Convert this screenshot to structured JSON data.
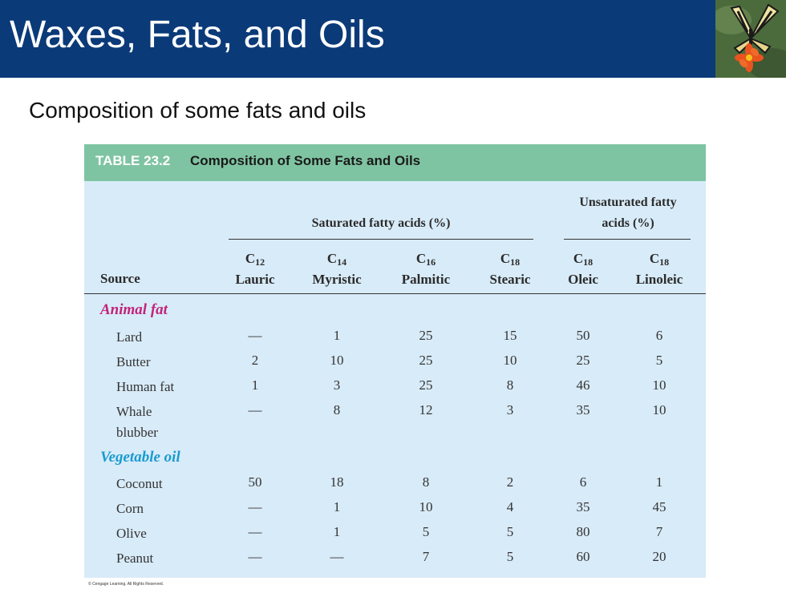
{
  "slide": {
    "title": "Waxes, Fats, and Oils",
    "subtitle": "Composition of some fats and oils",
    "copyright": "© Cengage Learning. All Rights Reserved."
  },
  "table": {
    "number": "TABLE 23.2",
    "caption": "Composition of Some Fats and Oils",
    "group_saturated": "Saturated fatty acids (%)",
    "group_unsaturated_line1": "Unsaturated fatty",
    "group_unsaturated_line2": "acids (%)",
    "source_header": "Source",
    "columns": [
      {
        "carbon": "C",
        "sub": "12",
        "name": "Lauric"
      },
      {
        "carbon": "C",
        "sub": "14",
        "name": "Myristic"
      },
      {
        "carbon": "C",
        "sub": "16",
        "name": "Palmitic"
      },
      {
        "carbon": "C",
        "sub": "18",
        "name": "Stearic"
      },
      {
        "carbon": "C",
        "sub": "18",
        "name": "Oleic"
      },
      {
        "carbon": "C",
        "sub": "18",
        "name": "Linoleic"
      }
    ],
    "categories": [
      {
        "label": "Animal fat",
        "rows": [
          {
            "source": "Lard",
            "values": [
              "—",
              "1",
              "25",
              "15",
              "50",
              "6"
            ]
          },
          {
            "source": "Butter",
            "values": [
              "2",
              "10",
              "25",
              "10",
              "25",
              "5"
            ]
          },
          {
            "source": "Human fat",
            "values": [
              "1",
              "3",
              "25",
              "8",
              "46",
              "10"
            ]
          },
          {
            "source": "Whale",
            "source2": "blubber",
            "values": [
              "—",
              "8",
              "12",
              "3",
              "35",
              "10"
            ]
          }
        ]
      },
      {
        "label": "Vegetable oil",
        "rows": [
          {
            "source": "Coconut",
            "values": [
              "50",
              "18",
              "8",
              "2",
              "6",
              "1"
            ]
          },
          {
            "source": "Corn",
            "values": [
              "—",
              "1",
              "10",
              "4",
              "35",
              "45"
            ]
          },
          {
            "source": "Olive",
            "values": [
              "—",
              "1",
              "5",
              "5",
              "80",
              "7"
            ]
          },
          {
            "source": "Peanut",
            "values": [
              "—",
              "—",
              "7",
              "5",
              "60",
              "20"
            ]
          }
        ]
      }
    ]
  },
  "colors": {
    "header_bg": "#0a3a78",
    "table_bg": "#d8ebf8",
    "table_head_bg": "#7fc4a2",
    "animal_fat": "#c2237a",
    "vegetable_oil": "#1a9bd0"
  },
  "icons": {
    "header_photo": "butterfly-on-flower-photo"
  }
}
